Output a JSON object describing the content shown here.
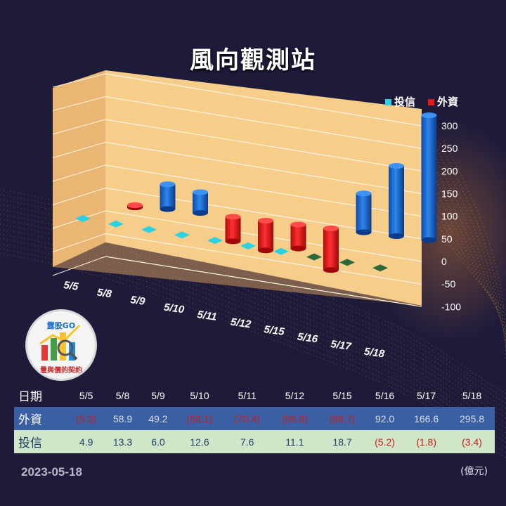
{
  "title": "風向觀測站",
  "legend": [
    {
      "name": "投信",
      "color": "#29d2e4"
    },
    {
      "name": "外資",
      "color": "#e51b1b"
    }
  ],
  "chart_data": {
    "type": "bar",
    "categories": [
      "5/5",
      "5/8",
      "5/9",
      "5/10",
      "5/11",
      "5/12",
      "5/15",
      "5/16",
      "5/17",
      "5/18"
    ],
    "series": [
      {
        "name": "外資",
        "values": [
          -5.3,
          58.9,
          49.2,
          -58.1,
          -70.4,
          -56.8,
          -98.7,
          92.0,
          166.6,
          295.8
        ]
      },
      {
        "name": "投信",
        "values": [
          4.9,
          13.3,
          6.0,
          12.6,
          7.6,
          11.1,
          18.7,
          -5.2,
          -1.8,
          -3.4
        ]
      }
    ],
    "yticks": [
      300,
      250,
      200,
      150,
      100,
      50,
      0,
      -50,
      -100
    ],
    "ylim": [
      -100,
      300
    ],
    "grid": true,
    "legend_position": "top-right",
    "colors": {
      "foreign_pos": "#1f6fd6",
      "foreign_neg": "#e51b1b",
      "trust_pos": "#29d2e4",
      "trust_neg": "#2a6b3b"
    }
  },
  "logo": {
    "brand": "露股GO",
    "slogan": "量與價的契約"
  },
  "table": {
    "date_header": "日期",
    "foreign_header": "外資",
    "trust_header": "投信",
    "dates": [
      "5/5",
      "5/8",
      "5/9",
      "5/10",
      "5/11",
      "5/12",
      "5/15",
      "5/16",
      "5/17",
      "5/18"
    ],
    "foreign": [
      "(5.3)",
      "58.9",
      "49.2",
      "(58.1)",
      "(70.4)",
      "(56.8)",
      "(98.7)",
      "92.0",
      "166.6",
      "295.8"
    ],
    "trust": [
      "4.9",
      "13.3",
      "6.0",
      "12.6",
      "7.6",
      "11.1",
      "18.7",
      "(5.2)",
      "(1.8)",
      "(3.4)"
    ]
  },
  "footer": {
    "date": "2023-05-18",
    "unit": "(億元)"
  }
}
